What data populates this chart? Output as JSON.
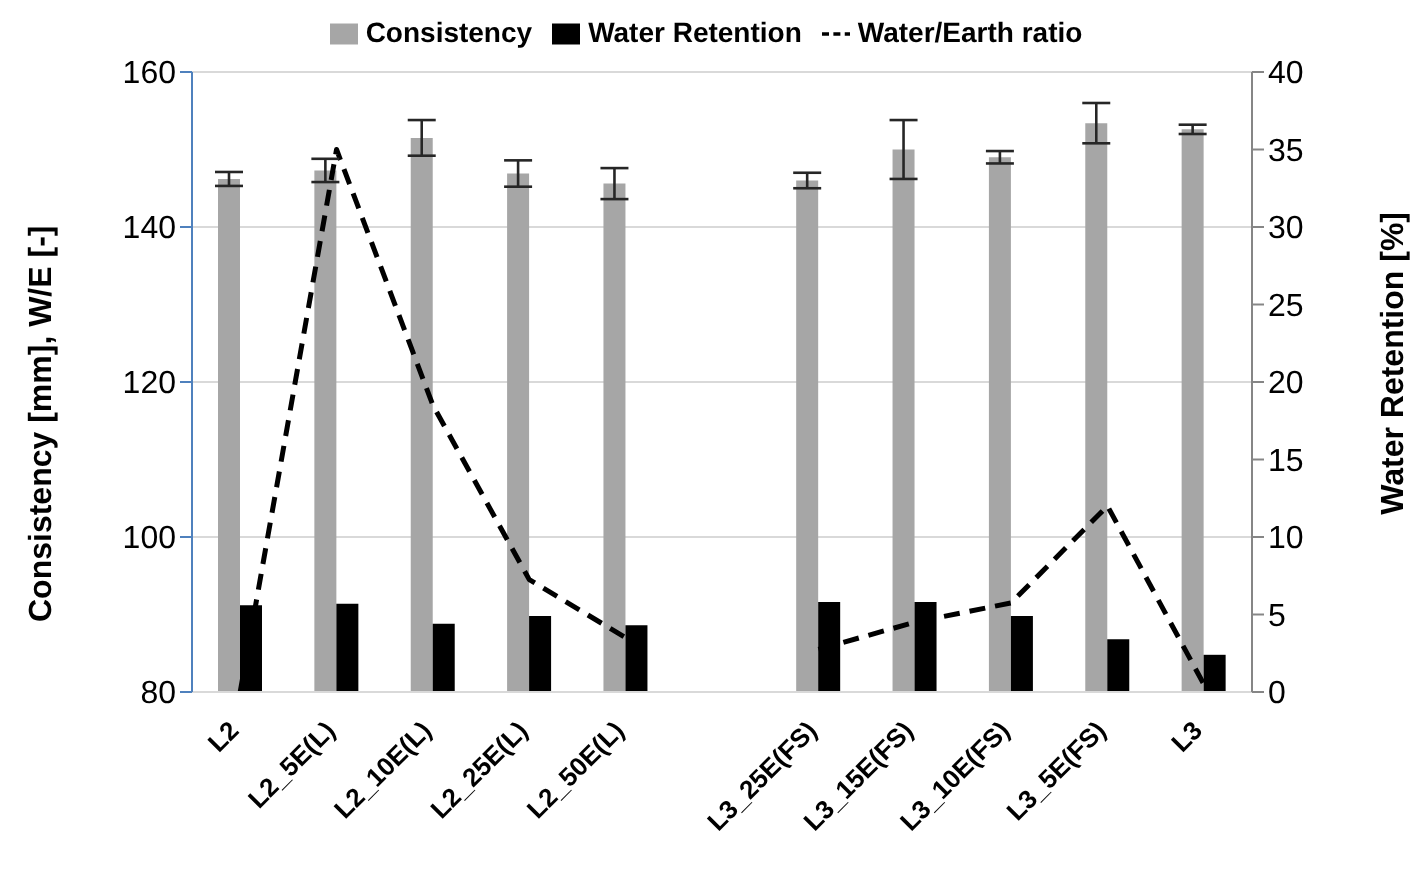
{
  "chart_data": {
    "type": "bar",
    "ylabel": "Consistency [mm], W/E [-]",
    "y2label": "Water Retention [%]",
    "categories": [
      "L2",
      "L2_5E(L)",
      "L2_10E(L)",
      "L2_25E(L)",
      "L2_50E(L)",
      null,
      "L3_25E(FS)",
      "L3_15E(FS)",
      "L3_10E(FS)",
      "L3_5E(FS)",
      "L3"
    ],
    "series": [
      {
        "name": "Consistency",
        "color": "#a6a6a6",
        "values": [
          146.2,
          147.3,
          151.5,
          146.9,
          145.6,
          null,
          146,
          150,
          149,
          153.4,
          152.6
        ],
        "errors": [
          0.9,
          1.5,
          2.3,
          1.7,
          2,
          null,
          1,
          3.8,
          0.8,
          2.6,
          0.6
        ]
      },
      {
        "name": "Water Retention",
        "axis": "y2",
        "color": "#000000",
        "values": [
          5.6,
          5.7,
          4.4,
          4.9,
          4.3,
          null,
          5.8,
          5.8,
          4.9,
          3.4,
          2.4
        ]
      },
      {
        "name": "Water/Earth ratio",
        "type": "line",
        "color": "#000000",
        "line_style": "dashed",
        "marker": "none",
        "values": [
          80,
          150,
          117,
          94.5,
          87,
          null,
          85.5,
          89,
          91.5,
          104,
          81
        ]
      }
    ],
    "ylim": [
      80,
      160
    ],
    "yticks": [
      80,
      100,
      120,
      140,
      160
    ],
    "y2lim": [
      0,
      40
    ],
    "y2ticks": [
      0,
      5,
      10,
      15,
      20,
      25,
      30,
      35,
      40
    ],
    "grid": "y",
    "legend": "top"
  }
}
